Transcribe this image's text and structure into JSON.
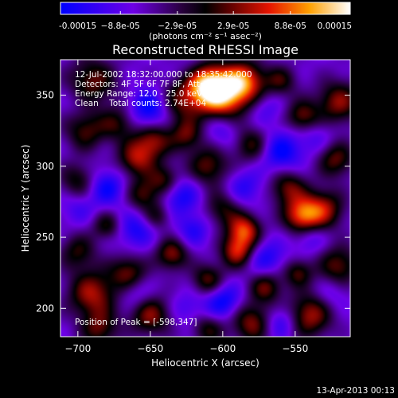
{
  "chart_data": {
    "type": "heatmap",
    "title": "Reconstructed RHESSI Image",
    "xlabel": "Heliocentric X (arcsec)",
    "ylabel": "Heliocentric Y (arcsec)",
    "xlim": [
      -712,
      -512
    ],
    "ylim": [
      180,
      375
    ],
    "x_ticks": [
      -700,
      -650,
      -600,
      -550
    ],
    "x_tick_labels": [
      "−700",
      "−650",
      "−600",
      "−550"
    ],
    "y_ticks": [
      200,
      250,
      300,
      350
    ],
    "y_tick_labels": [
      "200",
      "250",
      "300",
      "350"
    ],
    "colorbar": {
      "range": [
        -0.00015,
        0.00015
      ],
      "ticks": [
        -0.00015,
        -8.8e-05,
        -2.9e-05,
        2.9e-05,
        8.8e-05,
        0.00015
      ],
      "tick_labels": [
        "-0.00015",
        "−8.8e-05",
        "−2.9e-05",
        "2.9e-05",
        "8.8e-05",
        "0.00015"
      ],
      "unit_label": "(photons cm⁻² s⁻¹ asec⁻²)"
    },
    "annotations": [
      "12-Jul-2002 18:32:00.000 to 18:35:42.000",
      "Detectors: 4F 5F 6F 7F 8F, Att=1",
      "Energy Range: 12.0 - 25.0 keV",
      "Clean    Total counts: 2.74E+04"
    ],
    "peak_label": "Position of Peak = [-598,347]",
    "peak": {
      "x": -598,
      "y": 347
    },
    "blobs": [
      {
        "x": -600,
        "y": 350,
        "v": 0.00015,
        "s": 12
      },
      {
        "x": -612,
        "y": 358,
        "v": 0.00013,
        "s": 10
      },
      {
        "x": -585,
        "y": 360,
        "v": 0.00011,
        "s": 10
      },
      {
        "x": -630,
        "y": 345,
        "v": 6e-05,
        "s": 11
      },
      {
        "x": -690,
        "y": 360,
        "v": 7e-05,
        "s": 12
      },
      {
        "x": -695,
        "y": 325,
        "v": 6e-05,
        "s": 10
      },
      {
        "x": -700,
        "y": 290,
        "v": 5e-05,
        "s": 9
      },
      {
        "x": -672,
        "y": 330,
        "v": 5e-05,
        "s": 9
      },
      {
        "x": -660,
        "y": 305,
        "v": 8e-05,
        "s": 9
      },
      {
        "x": -655,
        "y": 280,
        "v": 6e-05,
        "s": 8
      },
      {
        "x": -648,
        "y": 318,
        "v": 8e-05,
        "s": 9
      },
      {
        "x": -640,
        "y": 290,
        "v": 7e-05,
        "s": 8
      },
      {
        "x": -625,
        "y": 322,
        "v": 6e-05,
        "s": 8
      },
      {
        "x": -610,
        "y": 300,
        "v": 7e-05,
        "s": 10
      },
      {
        "x": -600,
        "y": 270,
        "v": 5e-05,
        "s": 9
      },
      {
        "x": -580,
        "y": 315,
        "v": 6e-05,
        "s": 9
      },
      {
        "x": -585,
        "y": 255,
        "v": 0.00011,
        "s": 8
      },
      {
        "x": -590,
        "y": 240,
        "v": 0.0001,
        "s": 8
      },
      {
        "x": -555,
        "y": 285,
        "v": 7e-05,
        "s": 9
      },
      {
        "x": -545,
        "y": 265,
        "v": 0.00012,
        "s": 9
      },
      {
        "x": -530,
        "y": 270,
        "v": 8e-05,
        "s": 10
      },
      {
        "x": -522,
        "y": 305,
        "v": 7e-05,
        "s": 9
      },
      {
        "x": -520,
        "y": 345,
        "v": 8e-05,
        "s": 11
      },
      {
        "x": -545,
        "y": 335,
        "v": 7e-05,
        "s": 8
      },
      {
        "x": -520,
        "y": 230,
        "v": 7e-05,
        "s": 10
      },
      {
        "x": -540,
        "y": 195,
        "v": 9e-05,
        "s": 11
      },
      {
        "x": -548,
        "y": 225,
        "v": 6e-05,
        "s": 7
      },
      {
        "x": -570,
        "y": 215,
        "v": 7e-05,
        "s": 8
      },
      {
        "x": -580,
        "y": 190,
        "v": 8e-05,
        "s": 10
      },
      {
        "x": -610,
        "y": 220,
        "v": 7e-05,
        "s": 8
      },
      {
        "x": -635,
        "y": 238,
        "v": 8e-05,
        "s": 8
      },
      {
        "x": -665,
        "y": 225,
        "v": 7e-05,
        "s": 9
      },
      {
        "x": -690,
        "y": 210,
        "v": 9e-05,
        "s": 12
      },
      {
        "x": -700,
        "y": 240,
        "v": 5e-05,
        "s": 9
      },
      {
        "x": -680,
        "y": 258,
        "v": 5e-05,
        "s": 7
      },
      {
        "x": -645,
        "y": 265,
        "v": 4e-05,
        "s": 7
      },
      {
        "x": -650,
        "y": 195,
        "v": 8e-05,
        "s": 10
      },
      {
        "x": -685,
        "y": 185,
        "v": 6e-05,
        "s": 9
      },
      {
        "x": -610,
        "y": 185,
        "v": 5e-05,
        "s": 8
      },
      {
        "x": -560,
        "y": 360,
        "v": 5e-05,
        "s": 8
      },
      {
        "x": -650,
        "y": 340,
        "v": -0.00012,
        "s": 10
      },
      {
        "x": -680,
        "y": 285,
        "v": -0.0001,
        "s": 9
      },
      {
        "x": -630,
        "y": 280,
        "v": -0.0001,
        "s": 10
      },
      {
        "x": -660,
        "y": 255,
        "v": -9e-05,
        "s": 9
      },
      {
        "x": -620,
        "y": 255,
        "v": -8e-05,
        "s": 8
      },
      {
        "x": -585,
        "y": 285,
        "v": -8e-05,
        "s": 9
      },
      {
        "x": -560,
        "y": 310,
        "v": -0.00011,
        "s": 10
      },
      {
        "x": -535,
        "y": 320,
        "v": -6e-05,
        "s": 9
      },
      {
        "x": -600,
        "y": 325,
        "v": -7e-05,
        "s": 9
      },
      {
        "x": -570,
        "y": 235,
        "v": -9e-05,
        "s": 9
      },
      {
        "x": -600,
        "y": 205,
        "v": -0.00011,
        "s": 9
      },
      {
        "x": -625,
        "y": 200,
        "v": -6e-05,
        "s": 8
      },
      {
        "x": -560,
        "y": 190,
        "v": -9e-05,
        "s": 8
      },
      {
        "x": -660,
        "y": 210,
        "v": -7e-05,
        "s": 8
      },
      {
        "x": -700,
        "y": 270,
        "v": -6e-05,
        "s": 8
      },
      {
        "x": -540,
        "y": 250,
        "v": -7e-05,
        "s": 8
      },
      {
        "x": -525,
        "y": 210,
        "v": -6e-05,
        "s": 8
      },
      {
        "x": -620,
        "y": 365,
        "v": -5e-05,
        "s": 8
      },
      {
        "x": -570,
        "y": 340,
        "v": -6e-05,
        "s": 8
      },
      {
        "x": -700,
        "y": 345,
        "v": -4e-05,
        "s": 7
      }
    ]
  },
  "footer": {
    "timestamp": "13-Apr-2013 00:13"
  }
}
